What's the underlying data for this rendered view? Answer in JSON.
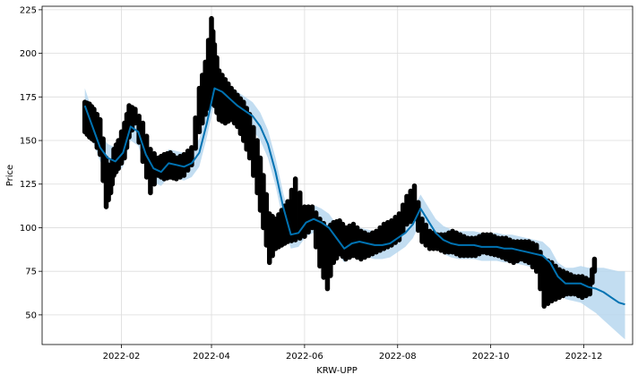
{
  "chart_data": {
    "type": "line",
    "title": "",
    "xlabel": "KRW-UPP",
    "ylabel": "Price",
    "xlim": [
      "2021-12-11",
      "2023-01-02"
    ],
    "ylim": [
      33,
      227
    ],
    "grid": true,
    "x_ticks": [
      "2022-02",
      "2022-04",
      "2022-06",
      "2022-08",
      "2022-10",
      "2022-12"
    ],
    "y_ticks": [
      50,
      75,
      100,
      125,
      150,
      175,
      200,
      225
    ],
    "colors": {
      "forecast": "#0072B2",
      "band": "#b7d7ee",
      "observed": "#000000"
    },
    "series": [
      {
        "kind": "observed_range",
        "x": [
          "2022-01-08",
          "2022-01-11",
          "2022-01-14",
          "2022-01-18",
          "2022-01-22",
          "2022-01-25",
          "2022-01-27",
          "2022-01-30",
          "2022-02-03",
          "2022-02-06",
          "2022-02-10",
          "2022-02-15",
          "2022-02-20",
          "2022-02-25",
          "2022-03-01",
          "2022-03-05",
          "2022-03-09",
          "2022-03-14",
          "2022-03-19",
          "2022-03-24",
          "2022-03-28",
          "2022-04-01",
          "2022-04-03",
          "2022-04-06",
          "2022-04-10",
          "2022-04-14",
          "2022-04-18",
          "2022-04-22",
          "2022-04-26",
          "2022-05-01",
          "2022-05-05",
          "2022-05-09",
          "2022-05-13",
          "2022-05-17",
          "2022-05-21",
          "2022-05-26",
          "2022-06-01",
          "2022-06-06",
          "2022-06-11",
          "2022-06-16",
          "2022-06-20",
          "2022-06-24",
          "2022-06-28",
          "2022-07-03",
          "2022-07-08",
          "2022-07-13",
          "2022-07-18",
          "2022-07-23",
          "2022-07-28",
          "2022-08-02",
          "2022-08-07",
          "2022-08-12",
          "2022-08-17",
          "2022-08-22",
          "2022-08-27",
          "2022-09-01",
          "2022-09-06",
          "2022-09-11",
          "2022-09-16",
          "2022-09-21",
          "2022-09-26",
          "2022-10-01",
          "2022-10-06",
          "2022-10-11",
          "2022-10-16",
          "2022-10-21",
          "2022-10-26",
          "2022-10-31",
          "2022-11-05",
          "2022-11-10",
          "2022-11-15",
          "2022-11-20",
          "2022-11-25",
          "2022-11-30",
          "2022-12-05",
          "2022-12-08"
        ],
        "low": [
          155,
          152,
          150,
          142,
          112,
          120,
          130,
          134,
          140,
          152,
          160,
          138,
          120,
          130,
          128,
          129,
          128,
          130,
          136,
          155,
          165,
          172,
          170,
          162,
          160,
          162,
          158,
          150,
          140,
          120,
          100,
          80,
          88,
          90,
          92,
          93,
          95,
          100,
          78,
          65,
          80,
          85,
          82,
          84,
          82,
          84,
          86,
          88,
          90,
          93,
          102,
          105,
          92,
          88,
          88,
          86,
          86,
          84,
          84,
          84,
          86,
          85,
          84,
          82,
          80,
          82,
          80,
          75,
          55,
          58,
          60,
          62,
          62,
          60,
          62,
          75
        ],
        "high": [
          172,
          171,
          168,
          162,
          140,
          132,
          145,
          150,
          160,
          170,
          168,
          160,
          145,
          140,
          142,
          143,
          140,
          142,
          146,
          180,
          195,
          220,
          205,
          190,
          185,
          180,
          176,
          172,
          165,
          150,
          130,
          108,
          105,
          110,
          115,
          128,
          112,
          112,
          105,
          100,
          103,
          104,
          100,
          102,
          98,
          96,
          98,
          102,
          104,
          108,
          118,
          124,
          105,
          98,
          96,
          96,
          98,
          96,
          94,
          94,
          96,
          96,
          94,
          94,
          92,
          92,
          92,
          90,
          82,
          80,
          76,
          74,
          72,
          72,
          70,
          82
        ]
      },
      {
        "name": "",
        "kind": "forecast",
        "x": [
          "2022-01-08",
          "2022-01-13",
          "2022-01-18",
          "2022-01-23",
          "2022-01-28",
          "2022-02-02",
          "2022-02-07",
          "2022-02-12",
          "2022-02-17",
          "2022-02-22",
          "2022-02-27",
          "2022-03-04",
          "2022-03-09",
          "2022-03-14",
          "2022-03-19",
          "2022-03-24",
          "2022-03-29",
          "2022-04-03",
          "2022-04-08",
          "2022-04-13",
          "2022-04-18",
          "2022-04-23",
          "2022-04-28",
          "2022-05-03",
          "2022-05-08",
          "2022-05-13",
          "2022-05-18",
          "2022-05-23",
          "2022-05-28",
          "2022-06-02",
          "2022-06-07",
          "2022-06-12",
          "2022-06-17",
          "2022-06-22",
          "2022-06-27",
          "2022-07-02",
          "2022-07-07",
          "2022-07-12",
          "2022-07-17",
          "2022-07-22",
          "2022-07-27",
          "2022-08-01",
          "2022-08-06",
          "2022-08-11",
          "2022-08-16",
          "2022-08-21",
          "2022-08-26",
          "2022-08-31",
          "2022-09-05",
          "2022-09-10",
          "2022-09-15",
          "2022-09-20",
          "2022-09-25",
          "2022-09-30",
          "2022-10-05",
          "2022-10-10",
          "2022-10-15",
          "2022-10-20",
          "2022-10-25",
          "2022-10-30",
          "2022-11-04",
          "2022-11-09",
          "2022-11-14",
          "2022-11-19",
          "2022-11-24",
          "2022-11-29",
          "2022-12-04",
          "2022-12-09",
          "2022-12-14",
          "2022-12-19",
          "2022-12-24",
          "2022-12-28"
        ],
        "yhat": [
          170,
          158,
          146,
          140,
          138,
          143,
          158,
          155,
          142,
          134,
          132,
          137,
          136,
          135,
          137,
          143,
          160,
          180,
          178,
          174,
          170,
          167,
          164,
          158,
          148,
          132,
          112,
          96,
          97,
          103,
          105,
          103,
          100,
          94,
          88,
          91,
          92,
          91,
          90,
          90,
          91,
          94,
          97,
          102,
          111,
          104,
          97,
          93,
          91,
          90,
          90,
          90,
          89,
          89,
          89,
          88,
          88,
          87,
          86,
          85,
          84,
          80,
          72,
          68,
          68,
          68,
          66,
          65,
          63,
          60,
          57,
          56
        ],
        "lower": [
          162,
          150,
          138,
          132,
          130,
          135,
          150,
          147,
          134,
          126,
          124,
          129,
          128,
          127,
          129,
          135,
          152,
          172,
          170,
          166,
          162,
          159,
          156,
          150,
          140,
          124,
          104,
          88,
          89,
          95,
          97,
          95,
          92,
          86,
          80,
          83,
          84,
          83,
          82,
          82,
          83,
          86,
          89,
          94,
          103,
          96,
          89,
          85,
          83,
          82,
          82,
          82,
          81,
          81,
          81,
          80,
          80,
          79,
          78,
          77,
          76,
          72,
          64,
          59,
          58,
          57,
          54,
          51,
          47,
          43,
          39,
          36
        ],
        "upper": [
          180,
          167,
          154,
          148,
          146,
          151,
          166,
          163,
          150,
          142,
          140,
          145,
          144,
          143,
          145,
          151,
          168,
          188,
          186,
          182,
          178,
          175,
          172,
          166,
          156,
          140,
          120,
          104,
          105,
          111,
          113,
          111,
          108,
          102,
          96,
          99,
          100,
          99,
          98,
          98,
          99,
          102,
          105,
          110,
          119,
          112,
          105,
          101,
          99,
          98,
          98,
          98,
          97,
          97,
          97,
          96,
          96,
          95,
          94,
          93,
          92,
          88,
          80,
          77,
          77,
          78,
          77,
          77,
          77,
          76,
          75,
          75
        ]
      }
    ]
  }
}
